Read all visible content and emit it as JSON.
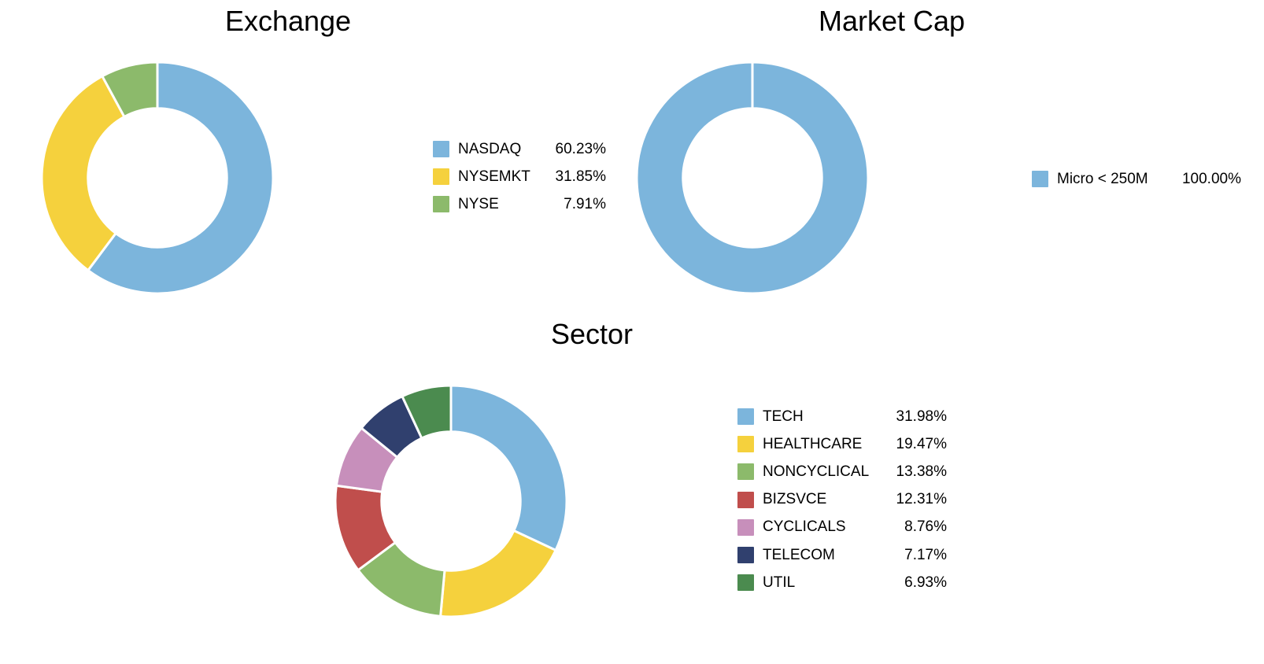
{
  "chart_data": [
    {
      "id": "exchange",
      "type": "pie",
      "title": "Exchange",
      "donut": true,
      "inner_radius_ratio": 0.6,
      "start_angle_deg": 0,
      "direction": "clockwise",
      "legend_position": "right",
      "labels": [
        "NASDAQ",
        "NYSEMKT",
        "NYSE"
      ],
      "values": [
        60.23,
        31.85,
        7.91
      ],
      "value_labels": [
        "60.23%",
        "31.85%",
        "7.91%"
      ],
      "colors": [
        "#7CB5DC",
        "#F5D13D",
        "#8CBA6B"
      ]
    },
    {
      "id": "market-cap",
      "type": "pie",
      "title": "Market Cap",
      "donut": true,
      "inner_radius_ratio": 0.6,
      "start_angle_deg": 0,
      "direction": "clockwise",
      "legend_position": "right",
      "labels": [
        "Micro < 250M"
      ],
      "values": [
        100.0
      ],
      "value_labels": [
        "100.00%"
      ],
      "colors": [
        "#7CB5DC"
      ]
    },
    {
      "id": "sector",
      "type": "pie",
      "title": "Sector",
      "donut": true,
      "inner_radius_ratio": 0.6,
      "start_angle_deg": 0,
      "direction": "clockwise",
      "legend_position": "right",
      "labels": [
        "TECH",
        "HEALTHCARE",
        "NONCYCLICAL",
        "BIZSVCE",
        "CYCLICALS",
        "TELECOM",
        "UTIL"
      ],
      "values": [
        31.98,
        19.47,
        13.38,
        12.31,
        8.76,
        7.17,
        6.93
      ],
      "value_labels": [
        "31.98%",
        "19.47%",
        "13.38%",
        "12.31%",
        "8.76%",
        "7.17%",
        "6.93%"
      ],
      "colors": [
        "#7CB5DC",
        "#F5D13D",
        "#8CBA6B",
        "#C04E4C",
        "#C78FBB",
        "#30406E",
        "#4B8B4F"
      ]
    }
  ]
}
